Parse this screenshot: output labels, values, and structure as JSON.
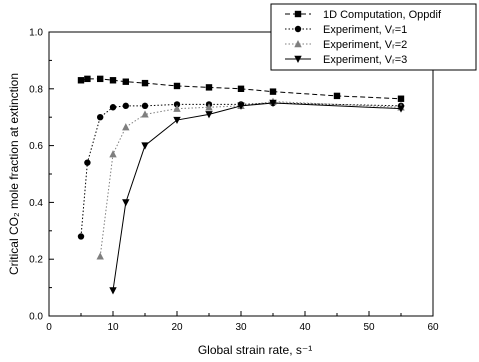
{
  "chart_data": {
    "type": "line",
    "xlabel": "Global strain rate, s⁻¹",
    "ylabel": "Critical CO₂ mole fraction at extinction",
    "xlim": [
      0,
      60
    ],
    "ylim": [
      0,
      1.0
    ],
    "xticks": [
      "0",
      "10",
      "20",
      "30",
      "40",
      "50",
      "60"
    ],
    "yticks": [
      "0.0",
      "0.2",
      "0.4",
      "0.6",
      "0.8",
      "1.0"
    ],
    "grid": false,
    "legend_position": "top-right",
    "series": [
      {
        "name": "1D Computation, Oppdif",
        "marker": "square",
        "line": "dashed",
        "color": "#000000",
        "x": [
          5,
          6,
          8,
          10,
          12,
          15,
          20,
          25,
          30,
          35,
          45,
          55
        ],
        "y": [
          0.83,
          0.835,
          0.835,
          0.83,
          0.825,
          0.82,
          0.81,
          0.805,
          0.8,
          0.79,
          0.775,
          0.765
        ]
      },
      {
        "name": "Experiment, Vᵣ=1",
        "marker": "circle",
        "line": "dotted",
        "color": "#000000",
        "x": [
          5,
          6,
          8,
          10,
          12,
          15,
          20,
          25,
          30,
          35,
          55
        ],
        "y": [
          0.28,
          0.54,
          0.7,
          0.735,
          0.74,
          0.74,
          0.745,
          0.745,
          0.745,
          0.75,
          0.74
        ]
      },
      {
        "name": "Experiment, Vᵣ=2",
        "marker": "triangle-up",
        "line": "dotted",
        "color": "#7f7f7f",
        "x": [
          8,
          10,
          12,
          15,
          20,
          25,
          30,
          35,
          55
        ],
        "y": [
          0.21,
          0.57,
          0.665,
          0.71,
          0.73,
          0.735,
          0.74,
          0.755,
          0.735
        ]
      },
      {
        "name": "Experiment, Vᵣ=3",
        "marker": "triangle-down",
        "line": "solid",
        "color": "#000000",
        "x": [
          10,
          12,
          15,
          20,
          25,
          30,
          35,
          55
        ],
        "y": [
          0.09,
          0.4,
          0.6,
          0.69,
          0.71,
          0.74,
          0.75,
          0.73
        ]
      }
    ],
    "legend": [
      "1D Computation, Oppdif",
      "Experiment, Vᵣ=1",
      "Experiment, Vᵣ=2",
      "Experiment, Vᵣ=3"
    ]
  }
}
